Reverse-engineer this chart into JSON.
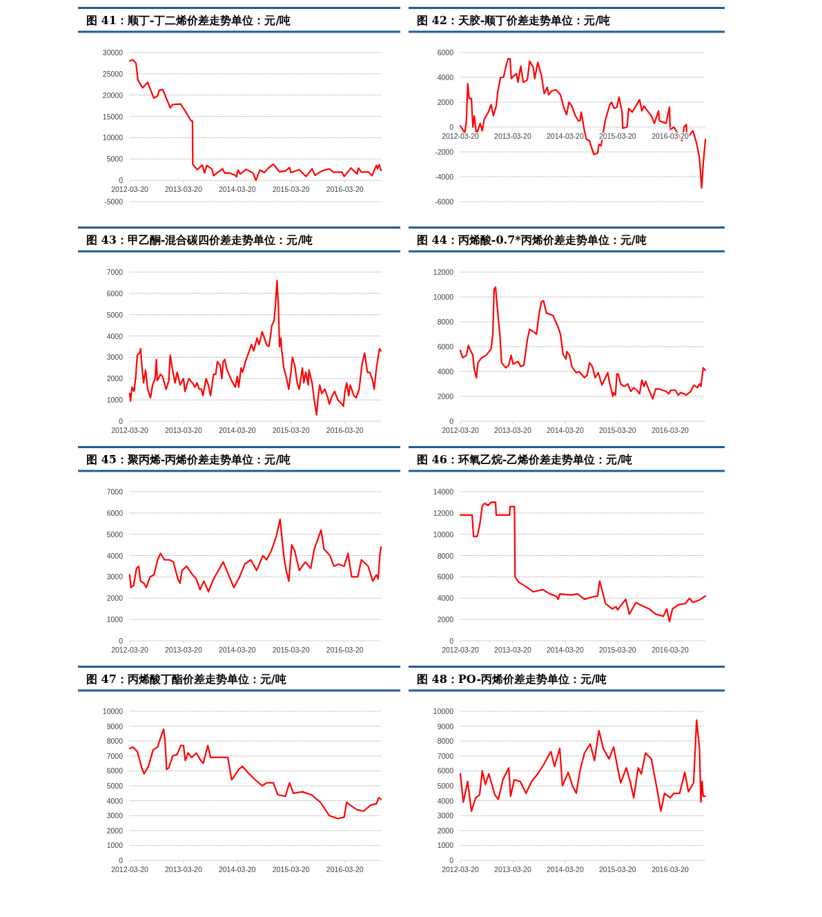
{
  "chart_data": [
    {
      "type": "line",
      "title": "图 41：顺丁-丁二烯价差走势单位：元/吨",
      "color": "#ff0000",
      "grid": "y",
      "xlim": [
        "2012-03-20",
        "2016-11-20"
      ],
      "xticks": [
        "2012-03-20",
        "2013-03-20",
        "2014-03-20",
        "2015-03-20",
        "2016-03-20"
      ],
      "ylim": [
        -5000,
        30000
      ],
      "yticks": [
        -5000,
        0,
        5000,
        10000,
        15000,
        20000,
        25000,
        30000
      ],
      "x": [
        "2012-03-20",
        "2012-04-10",
        "2012-05-01",
        "2012-05-15",
        "2012-06-15",
        "2012-07-20",
        "2012-08-30",
        "2012-09-25",
        "2012-10-05",
        "2012-10-30",
        "2012-12-20",
        "2013-01-05",
        "2013-03-01",
        "2013-04-05",
        "2013-05-10",
        "2013-05-20",
        "2013-05-22",
        "2013-06-22",
        "2013-07-25",
        "2013-08-10",
        "2013-08-25",
        "2013-09-30",
        "2013-10-10",
        "2013-12-10",
        "2013-12-25",
        "2014-01-30",
        "2014-03-05",
        "2014-03-15",
        "2014-03-25",
        "2014-04-10",
        "2014-05-20",
        "2014-07-05",
        "2014-07-25",
        "2014-08-20",
        "2014-09-20",
        "2014-10-15",
        "2014-11-20",
        "2015-01-01",
        "2015-02-10",
        "2015-03-10",
        "2015-03-20",
        "2015-05-15",
        "2015-06-30",
        "2015-08-10",
        "2015-08-30",
        "2015-10-15",
        "2015-12-05",
        "2016-01-01",
        "2016-03-01",
        "2016-03-15",
        "2016-04-30",
        "2016-06-10",
        "2016-06-20",
        "2016-07-10",
        "2016-08-25",
        "2016-09-20",
        "2016-10-20",
        "2016-10-28",
        "2016-11-08",
        "2016-11-20"
      ],
      "values": [
        28000,
        28300,
        27500,
        23500,
        21700,
        23000,
        19300,
        19800,
        21100,
        21300,
        17000,
        17800,
        17900,
        16000,
        14000,
        13900,
        3700,
        2500,
        3600,
        1700,
        3500,
        2600,
        1100,
        2700,
        1700,
        1700,
        1200,
        800,
        2400,
        1500,
        2600,
        1700,
        0,
        2400,
        1800,
        2800,
        3800,
        2000,
        2200,
        3000,
        1800,
        2500,
        900,
        2700,
        1200,
        2200,
        2700,
        1900,
        1900,
        900,
        2900,
        1500,
        2900,
        1900,
        2000,
        1100,
        3500,
        2700,
        3700,
        2300
      ]
    },
    {
      "type": "line",
      "title": "图 42：天胶-顺丁价差走势单位：元/吨",
      "color": "#ff0000",
      "grid": "y",
      "xlim": [
        "2012-03-20",
        "2016-11-20"
      ],
      "xticks": [
        "2012-03-20",
        "2013-03-20",
        "2014-03-20",
        "2015-03-20",
        "2016-03-20"
      ],
      "ylim": [
        -6000,
        6000
      ],
      "yticks": [
        -6000,
        -4000,
        -2000,
        0,
        2000,
        4000,
        6000
      ],
      "x": [
        "2012-03-20",
        "2012-04-10",
        "2012-04-20",
        "2012-05-01",
        "2012-05-10",
        "2012-05-20",
        "2012-06-05",
        "2012-06-15",
        "2012-06-25",
        "2012-07-10",
        "2012-08-05",
        "2012-08-20",
        "2012-09-01",
        "2012-10-01",
        "2012-10-20",
        "2012-11-05",
        "2012-11-25",
        "2012-12-05",
        "2012-12-25",
        "2013-01-15",
        "2013-02-01",
        "2013-02-15",
        "2013-03-01",
        "2013-03-10",
        "2013-03-25",
        "2013-04-15",
        "2013-04-25",
        "2013-05-15",
        "2013-06-01",
        "2013-06-30",
        "2013-07-15",
        "2013-08-10",
        "2013-08-20",
        "2013-09-10",
        "2013-10-05",
        "2013-10-25",
        "2013-11-15",
        "2013-11-25",
        "2013-12-15",
        "2014-01-15",
        "2014-02-15",
        "2014-03-10",
        "2014-03-30",
        "2014-04-15",
        "2014-05-05",
        "2014-05-30",
        "2014-06-20",
        "2014-07-01",
        "2014-07-10",
        "2014-08-01",
        "2014-08-15",
        "2014-09-05",
        "2014-10-05",
        "2014-11-01",
        "2014-11-10",
        "2014-11-25",
        "2014-12-25",
        "2015-01-25",
        "2015-02-05",
        "2015-02-25",
        "2015-03-15",
        "2015-03-30",
        "2015-04-20",
        "2015-04-25",
        "2015-05-25",
        "2015-06-05",
        "2015-06-30",
        "2015-07-30",
        "2015-08-20",
        "2015-09-05",
        "2015-09-20",
        "2015-10-20",
        "2015-11-10",
        "2015-12-01",
        "2015-12-30",
        "2016-01-05",
        "2016-02-20",
        "2016-03-15",
        "2016-03-20",
        "2016-04-15",
        "2016-06-10",
        "2016-06-25",
        "2016-07-10",
        "2016-07-15",
        "2016-08-25",
        "2016-09-20",
        "2016-10-10",
        "2016-10-25",
        "2016-11-05",
        "2016-11-20"
      ],
      "values": [
        100,
        -300,
        -500,
        500,
        3500,
        2300,
        2300,
        0,
        900,
        -600,
        300,
        -300,
        600,
        1200,
        1800,
        900,
        1700,
        2800,
        4000,
        4000,
        4900,
        5500,
        5500,
        3900,
        4100,
        4300,
        3600,
        4900,
        3600,
        3800,
        5300,
        4800,
        3900,
        5200,
        4200,
        2700,
        3200,
        2600,
        2900,
        3000,
        2600,
        1600,
        1000,
        2000,
        1700,
        900,
        500,
        500,
        1200,
        -300,
        -1000,
        -1100,
        -2200,
        -2100,
        -1400,
        -1500,
        600,
        1800,
        2000,
        1500,
        1600,
        2400,
        1200,
        -100,
        0,
        1500,
        1200,
        1800,
        2200,
        1300,
        1700,
        1200,
        900,
        300,
        1300,
        500,
        300,
        1600,
        -200,
        0,
        -1100,
        0,
        200,
        -900,
        -300,
        -1300,
        -2500,
        -4900,
        -3000,
        -1000
      ]
    },
    {
      "type": "line",
      "title": "图 43：甲乙酮-混合碳四价差走势单位：元/吨",
      "color": "#ff0000",
      "grid": "y",
      "xlim": [
        "2012-03-20",
        "2016-11-20"
      ],
      "xticks": [
        "2012-03-20",
        "2013-03-20",
        "2014-03-20",
        "2015-03-20",
        "2016-03-20"
      ],
      "ylim": [
        0,
        7000
      ],
      "yticks": [
        0,
        1000,
        2000,
        3000,
        4000,
        5000,
        6000,
        7000
      ],
      "x": [
        "2012-03-20",
        "2012-03-25",
        "2012-04-05",
        "2012-04-18",
        "2012-04-30",
        "2012-05-10",
        "2012-05-25",
        "2012-06-02",
        "2012-06-10",
        "2012-06-22",
        "2012-07-05",
        "2012-07-20",
        "2012-08-08",
        "2012-08-22",
        "2012-09-08",
        "2012-09-17",
        "2012-09-23",
        "2012-10-15",
        "2012-10-28",
        "2012-11-22",
        "2012-12-10",
        "2012-12-20",
        "2013-01-05",
        "2013-01-22",
        "2013-02-05",
        "2013-02-25",
        "2013-03-20",
        "2013-03-30",
        "2013-04-25",
        "2013-05-20",
        "2013-06-05",
        "2013-06-20",
        "2013-07-05",
        "2013-07-20",
        "2013-07-30",
        "2013-08-20",
        "2013-09-05",
        "2013-09-20",
        "2013-10-10",
        "2013-10-25",
        "2013-11-05",
        "2013-11-25",
        "2013-12-05",
        "2013-12-15",
        "2013-12-25",
        "2014-01-10",
        "2014-02-10",
        "2014-03-07",
        "2014-03-20",
        "2014-03-30",
        "2014-04-15",
        "2014-04-25",
        "2014-05-15",
        "2014-06-25",
        "2014-07-10",
        "2014-08-01",
        "2014-08-15",
        "2014-09-05",
        "2014-10-05",
        "2014-10-20",
        "2014-10-30",
        "2014-11-10",
        "2014-11-25",
        "2014-12-05",
        "2014-12-15",
        "2014-12-25",
        "2015-01-01",
        "2015-01-10",
        "2015-01-15",
        "2015-01-30",
        "2015-02-15",
        "2015-03-05",
        "2015-03-20",
        "2015-03-30",
        "2015-04-15",
        "2015-05-01",
        "2015-05-15",
        "2015-06-05",
        "2015-06-15",
        "2015-06-28",
        "2015-07-15",
        "2015-07-20",
        "2015-08-10",
        "2015-08-25",
        "2015-09-10",
        "2015-09-20",
        "2015-10-01",
        "2015-10-15",
        "2015-11-05",
        "2015-11-25",
        "2015-12-05",
        "2015-12-25",
        "2016-01-10",
        "2016-02-01",
        "2016-03-01",
        "2016-03-10",
        "2016-03-20",
        "2016-04-01",
        "2016-04-15",
        "2016-04-25",
        "2016-05-20",
        "2016-06-05",
        "2016-06-25",
        "2016-07-15",
        "2016-08-01",
        "2016-08-20",
        "2016-09-05",
        "2016-09-25",
        "2016-10-05",
        "2016-10-20",
        "2016-11-10",
        "2016-11-20"
      ],
      "values": [
        1300,
        950,
        1600,
        1400,
        2100,
        3100,
        3200,
        3400,
        2600,
        1800,
        2400,
        1500,
        1100,
        1700,
        2000,
        2900,
        1900,
        2200,
        2100,
        1500,
        1900,
        3100,
        2400,
        1800,
        2300,
        1700,
        2000,
        1400,
        2000,
        1800,
        1600,
        1800,
        1500,
        1500,
        1200,
        2000,
        1700,
        1200,
        2200,
        2200,
        2800,
        2600,
        2000,
        2800,
        2900,
        2400,
        1900,
        1600,
        2100,
        1600,
        2500,
        2300,
        2800,
        3600,
        3300,
        3900,
        3600,
        4200,
        3600,
        3500,
        3900,
        4500,
        4700,
        5500,
        6600,
        5300,
        3500,
        3900,
        3400,
        2500,
        2100,
        1500,
        2300,
        3000,
        2600,
        1800,
        1500,
        2500,
        1800,
        2300,
        1700,
        2400,
        1800,
        1000,
        300,
        1100,
        1700,
        1300,
        1500,
        1100,
        800,
        1200,
        1400,
        1000,
        800,
        700,
        1400,
        1800,
        1200,
        1700,
        1200,
        1100,
        1500,
        2700,
        3200,
        2300,
        2300,
        1900,
        1500,
        2500,
        3400,
        3300
      ]
    },
    {
      "type": "line",
      "title": "图 44：丙烯酸-0.7*丙烯价差走势单位：元/吨",
      "color": "#ff0000",
      "grid": "y",
      "xlim": [
        "2012-03-20",
        "2016-11-20"
      ],
      "xticks": [
        "2012-03-20",
        "2013-03-20",
        "2014-03-20",
        "2015-03-20",
        "2016-03-20"
      ],
      "ylim": [
        0,
        12000
      ],
      "yticks": [
        0,
        2000,
        4000,
        6000,
        8000,
        10000,
        12000
      ],
      "x": [
        "2012-03-20",
        "2012-04-05",
        "2012-05-01",
        "2012-05-15",
        "2012-05-25",
        "2012-06-15",
        "2012-06-25",
        "2012-07-10",
        "2012-07-20",
        "2012-08-15",
        "2012-09-15",
        "2012-10-20",
        "2012-11-01",
        "2012-11-10",
        "2012-11-20",
        "2012-12-01",
        "2012-12-20",
        "2013-01-01",
        "2013-01-30",
        "2013-02-20",
        "2013-03-08",
        "2013-03-22",
        "2013-04-25",
        "2013-05-15",
        "2013-06-05",
        "2013-06-30",
        "2013-07-15",
        "2013-08-10",
        "2013-09-01",
        "2013-09-20",
        "2013-10-05",
        "2013-10-20",
        "2013-11-10",
        "2013-12-25",
        "2014-01-10",
        "2014-02-01",
        "2014-02-15",
        "2014-03-05",
        "2014-03-25",
        "2014-04-01",
        "2014-04-20",
        "2014-05-05",
        "2014-06-05",
        "2014-06-25",
        "2014-08-01",
        "2014-08-20",
        "2014-09-05",
        "2014-09-25",
        "2014-10-15",
        "2014-11-05",
        "2014-12-01",
        "2014-12-25",
        "2015-01-10",
        "2015-01-25",
        "2015-02-15",
        "2015-02-20",
        "2015-03-05",
        "2015-03-15",
        "2015-03-25",
        "2015-04-10",
        "2015-05-05",
        "2015-05-30",
        "2015-06-20",
        "2015-07-10",
        "2015-08-01",
        "2015-08-20",
        "2015-09-05",
        "2015-09-20",
        "2015-10-01",
        "2015-10-25",
        "2015-11-20",
        "2015-12-10",
        "2016-01-05",
        "2016-01-25",
        "2016-02-20",
        "2016-03-10",
        "2016-03-25",
        "2016-04-25",
        "2016-05-15",
        "2016-06-01",
        "2016-06-25",
        "2016-07-10",
        "2016-08-10",
        "2016-09-01",
        "2016-09-25",
        "2016-10-10",
        "2016-10-20",
        "2016-11-05",
        "2016-11-20"
      ],
      "values": [
        5700,
        5100,
        5300,
        6100,
        5800,
        5300,
        4200,
        3500,
        4700,
        5100,
        5300,
        5800,
        7000,
        10600,
        10800,
        9300,
        7000,
        4700,
        4300,
        4500,
        5300,
        4600,
        4800,
        4400,
        4500,
        6600,
        7400,
        7200,
        7000,
        8700,
        9600,
        9700,
        8700,
        8500,
        8100,
        7500,
        7000,
        5400,
        5000,
        5600,
        5300,
        4400,
        3900,
        4000,
        3500,
        3700,
        4700,
        4400,
        3500,
        3900,
        2900,
        3500,
        3900,
        3000,
        2000,
        2300,
        2100,
        3800,
        3800,
        3000,
        2800,
        3000,
        2400,
        2700,
        2500,
        2200,
        3300,
        2800,
        3200,
        2500,
        1800,
        2600,
        2600,
        2500,
        2400,
        2200,
        2500,
        2500,
        2100,
        2300,
        2200,
        2100,
        2400,
        2900,
        2700,
        3000,
        2800,
        4300,
        4100
      ]
    },
    {
      "type": "line",
      "title": "图 45：聚丙烯-丙烯价差走势单位：元/吨",
      "color": "#ff0000",
      "grid": "y",
      "xlim": [
        "2012-03-20",
        "2016-11-20"
      ],
      "xticks": [
        "2012-03-20",
        "2013-03-20",
        "2014-03-20",
        "2015-03-20",
        "2016-03-20"
      ],
      "ylim": [
        0,
        7000
      ],
      "yticks": [
        0,
        1000,
        2000,
        3000,
        4000,
        5000,
        6000,
        7000
      ],
      "x": [
        "2012-03-20",
        "2012-03-28",
        "2012-04-15",
        "2012-05-05",
        "2012-05-20",
        "2012-06-01",
        "2012-06-25",
        "2012-07-10",
        "2012-08-05",
        "2012-09-01",
        "2012-09-25",
        "2012-10-15",
        "2012-11-10",
        "2012-12-15",
        "2013-01-10",
        "2013-02-10",
        "2013-02-25",
        "2013-03-10",
        "2013-04-10",
        "2013-05-20",
        "2013-06-15",
        "2013-07-10",
        "2013-08-05",
        "2013-08-25",
        "2013-09-05",
        "2013-10-10",
        "2013-11-20",
        "2013-12-15",
        "2014-01-20",
        "2014-02-25",
        "2014-04-05",
        "2014-05-10",
        "2014-06-20",
        "2014-07-30",
        "2014-09-10",
        "2014-10-05",
        "2014-11-05",
        "2014-12-10",
        "2015-01-05",
        "2015-01-30",
        "2015-02-15",
        "2015-03-05",
        "2015-03-25",
        "2015-04-15",
        "2015-05-15",
        "2015-06-25",
        "2015-08-01",
        "2015-08-25",
        "2015-10-10",
        "2015-10-30",
        "2015-12-10",
        "2016-01-05",
        "2016-02-05",
        "2016-03-15",
        "2016-04-10",
        "2016-05-05",
        "2016-06-15",
        "2016-07-10",
        "2016-08-25",
        "2016-09-25",
        "2016-10-20",
        "2016-11-01",
        "2016-11-12",
        "2016-11-20"
      ],
      "values": [
        3100,
        2500,
        2600,
        3400,
        3500,
        2800,
        2700,
        2500,
        3000,
        3100,
        3800,
        4100,
        3800,
        3800,
        3700,
        2900,
        2700,
        3300,
        3500,
        3100,
        2900,
        2400,
        2800,
        2500,
        2300,
        2900,
        3400,
        3700,
        3100,
        2500,
        3000,
        3600,
        3800,
        3300,
        4000,
        3800,
        4200,
        4900,
        5700,
        4000,
        3300,
        2800,
        4500,
        4200,
        3300,
        3700,
        3400,
        4300,
        5200,
        4300,
        4000,
        3500,
        3600,
        3500,
        4100,
        3000,
        3000,
        3800,
        3500,
        2800,
        3100,
        2900,
        4000,
        4400
      ]
    },
    {
      "type": "line",
      "title": "图 46：环氧乙烷-乙烯价差走势单位：元/吨",
      "color": "#ff0000",
      "grid": "y",
      "xlim": [
        "2012-03-20",
        "2016-11-20"
      ],
      "xticks": [
        "2012-03-20",
        "2013-03-20",
        "2014-03-20",
        "2015-03-20",
        "2016-03-20"
      ],
      "ylim": [
        0,
        14000
      ],
      "yticks": [
        0,
        2000,
        4000,
        6000,
        8000,
        10000,
        12000,
        14000
      ],
      "x": [
        "2012-03-20",
        "2012-06-10",
        "2012-06-20",
        "2012-07-15",
        "2012-08-01",
        "2012-08-20",
        "2012-09-05",
        "2012-09-30",
        "2012-10-20",
        "2012-11-20",
        "2012-11-25",
        "2013-02-25",
        "2013-03-01",
        "2013-04-01",
        "2013-04-05",
        "2013-04-30",
        "2013-06-30",
        "2013-08-10",
        "2013-10-15",
        "2013-12-05",
        "2014-01-15",
        "2014-01-30",
        "2014-02-10",
        "2014-05-01",
        "2014-06-15",
        "2014-08-01",
        "2014-09-20",
        "2014-11-01",
        "2014-11-15",
        "2014-12-05",
        "2014-12-25",
        "2015-02-10",
        "2015-03-10",
        "2015-03-20",
        "2015-05-15",
        "2015-06-10",
        "2015-07-25",
        "2015-08-20",
        "2015-10-25",
        "2015-12-10",
        "2016-02-01",
        "2016-02-25",
        "2016-03-15",
        "2016-04-05",
        "2016-05-20",
        "2016-07-05",
        "2016-08-01",
        "2016-08-25",
        "2016-10-05",
        "2016-11-20"
      ],
      "values": [
        11800,
        11800,
        9800,
        9800,
        10800,
        12700,
        12900,
        12700,
        13000,
        13000,
        11800,
        11800,
        12600,
        12600,
        6000,
        5500,
        5000,
        4600,
        4800,
        4400,
        4200,
        3900,
        4400,
        4300,
        4400,
        3900,
        4100,
        4200,
        5600,
        4600,
        3500,
        3000,
        3200,
        2900,
        3900,
        2500,
        3600,
        3400,
        3000,
        2500,
        2300,
        3000,
        1800,
        3000,
        3400,
        3500,
        4000,
        3600,
        3800,
        4200
      ]
    },
    {
      "type": "line",
      "title": "图 47：丙烯酸丁酯价差走势单位：元/吨",
      "color": "#ff0000",
      "grid": "y",
      "xlim": [
        "2012-03-20",
        "2016-11-20"
      ],
      "xticks": [
        "2012-03-20",
        "2013-03-20",
        "2014-03-20",
        "2015-03-20",
        "2016-03-20"
      ],
      "ylim": [
        0,
        10000
      ],
      "yticks": [
        0,
        1000,
        2000,
        3000,
        4000,
        5000,
        6000,
        7000,
        8000,
        9000,
        10000
      ],
      "x": [
        "2012-03-20",
        "2012-04-10",
        "2012-05-10",
        "2012-06-10",
        "2012-06-25",
        "2012-07-25",
        "2012-08-25",
        "2012-09-25",
        "2012-10-25",
        "2012-11-05",
        "2012-11-15",
        "2012-11-25",
        "2012-12-10",
        "2013-01-05",
        "2013-02-05",
        "2013-03-01",
        "2013-03-20",
        "2013-04-01",
        "2013-04-20",
        "2013-05-15",
        "2013-06-15",
        "2013-07-15",
        "2013-08-01",
        "2013-09-01",
        "2013-09-20",
        "2013-11-30",
        "2014-01-15",
        "2014-02-10",
        "2014-02-25",
        "2014-03-30",
        "2014-04-25",
        "2014-05-30",
        "2014-07-10",
        "2014-09-05",
        "2014-10-05",
        "2014-11-20",
        "2014-12-20",
        "2015-02-10",
        "2015-03-10",
        "2015-04-05",
        "2015-06-05",
        "2015-08-05",
        "2015-10-05",
        "2015-12-05",
        "2016-02-01",
        "2016-03-15",
        "2016-04-01",
        "2016-04-25",
        "2016-06-10",
        "2016-07-25",
        "2016-09-10",
        "2016-10-20",
        "2016-11-05",
        "2016-11-20"
      ],
      "values": [
        7500,
        7600,
        7300,
        6200,
        5800,
        6300,
        7400,
        7600,
        8500,
        8800,
        8000,
        6100,
        6200,
        7000,
        7100,
        7700,
        7700,
        6700,
        7200,
        6900,
        7200,
        6700,
        6500,
        7700,
        6900,
        6900,
        6900,
        5400,
        5600,
        6100,
        6300,
        5900,
        5500,
        5000,
        5200,
        5200,
        4400,
        4300,
        5200,
        4500,
        4600,
        4400,
        3900,
        3000,
        2800,
        2900,
        3900,
        3700,
        3400,
        3300,
        3700,
        3800,
        4200,
        4100
      ]
    },
    {
      "type": "line",
      "title": "图 48：PO-丙烯价差走势单位：元/吨",
      "color": "#ff0000",
      "grid": "y",
      "xlim": [
        "2012-03-20",
        "2016-11-20"
      ],
      "xticks": [
        "2012-03-20",
        "2013-03-20",
        "2014-03-20",
        "2015-03-20",
        "2016-03-20"
      ],
      "ylim": [
        0,
        10000
      ],
      "yticks": [
        0,
        1000,
        2000,
        3000,
        4000,
        5000,
        6000,
        7000,
        8000,
        9000,
        10000
      ],
      "x": [
        "2012-03-20",
        "2012-04-10",
        "2012-05-10",
        "2012-06-05",
        "2012-07-05",
        "2012-08-01",
        "2012-08-20",
        "2012-09-10",
        "2012-10-05",
        "2012-11-15",
        "2012-12-10",
        "2013-01-10",
        "2013-02-20",
        "2013-03-05",
        "2013-03-30",
        "2013-05-10",
        "2013-06-20",
        "2013-07-30",
        "2013-09-10",
        "2013-10-20",
        "2013-12-10",
        "2014-01-05",
        "2014-02-10",
        "2014-03-01",
        "2014-04-10",
        "2014-05-10",
        "2014-06-05",
        "2014-07-01",
        "2014-08-01",
        "2014-09-10",
        "2014-10-10",
        "2014-11-10",
        "2014-12-10",
        "2015-01-20",
        "2015-02-20",
        "2015-04-10",
        "2015-05-20",
        "2015-06-15",
        "2015-07-10",
        "2015-08-10",
        "2015-09-01",
        "2015-09-30",
        "2015-11-10",
        "2015-12-25",
        "2016-01-15",
        "2016-02-10",
        "2016-03-20",
        "2016-04-15",
        "2016-05-25",
        "2016-06-30",
        "2016-07-25",
        "2016-08-30",
        "2016-09-20",
        "2016-10-10",
        "2016-10-20",
        "2016-10-28",
        "2016-11-05",
        "2016-11-20"
      ],
      "values": [
        5800,
        3900,
        5300,
        3300,
        4200,
        4400,
        6000,
        5100,
        5800,
        4400,
        4100,
        5400,
        6200,
        4300,
        5400,
        5300,
        4500,
        5300,
        5800,
        6400,
        7300,
        6300,
        7500,
        5000,
        5900,
        5000,
        4500,
        6000,
        7200,
        7800,
        6700,
        8700,
        7500,
        6800,
        7600,
        5200,
        6200,
        5300,
        4200,
        6200,
        5800,
        7200,
        6800,
        4500,
        3300,
        4500,
        4200,
        4500,
        4500,
        5900,
        4600,
        5200,
        9400,
        7500,
        3900,
        5300,
        4300,
        4300
      ]
    }
  ]
}
